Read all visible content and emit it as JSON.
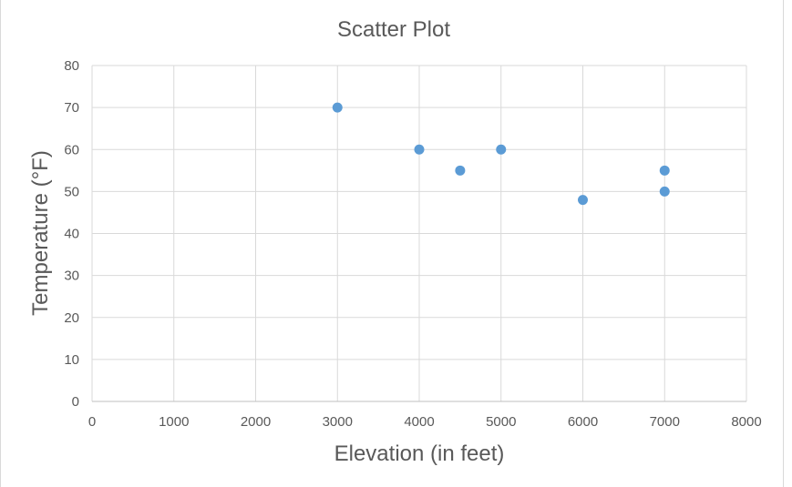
{
  "chart_data": {
    "type": "scatter",
    "title": "Scatter Plot",
    "xlabel": "Elevation (in feet)",
    "ylabel": "Temperature (°F)",
    "xlim": [
      0,
      8000
    ],
    "ylim": [
      0,
      80
    ],
    "xticks": [
      0,
      1000,
      2000,
      3000,
      4000,
      5000,
      6000,
      7000,
      8000
    ],
    "yticks": [
      0,
      10,
      20,
      30,
      40,
      50,
      60,
      70,
      80
    ],
    "grid": true,
    "legend": "none",
    "marker_color": "#5b9bd5",
    "points": [
      {
        "x": 3000,
        "y": 70
      },
      {
        "x": 4000,
        "y": 60
      },
      {
        "x": 4500,
        "y": 55
      },
      {
        "x": 5000,
        "y": 60
      },
      {
        "x": 6000,
        "y": 48
      },
      {
        "x": 7000,
        "y": 55
      },
      {
        "x": 7000,
        "y": 50
      }
    ]
  }
}
